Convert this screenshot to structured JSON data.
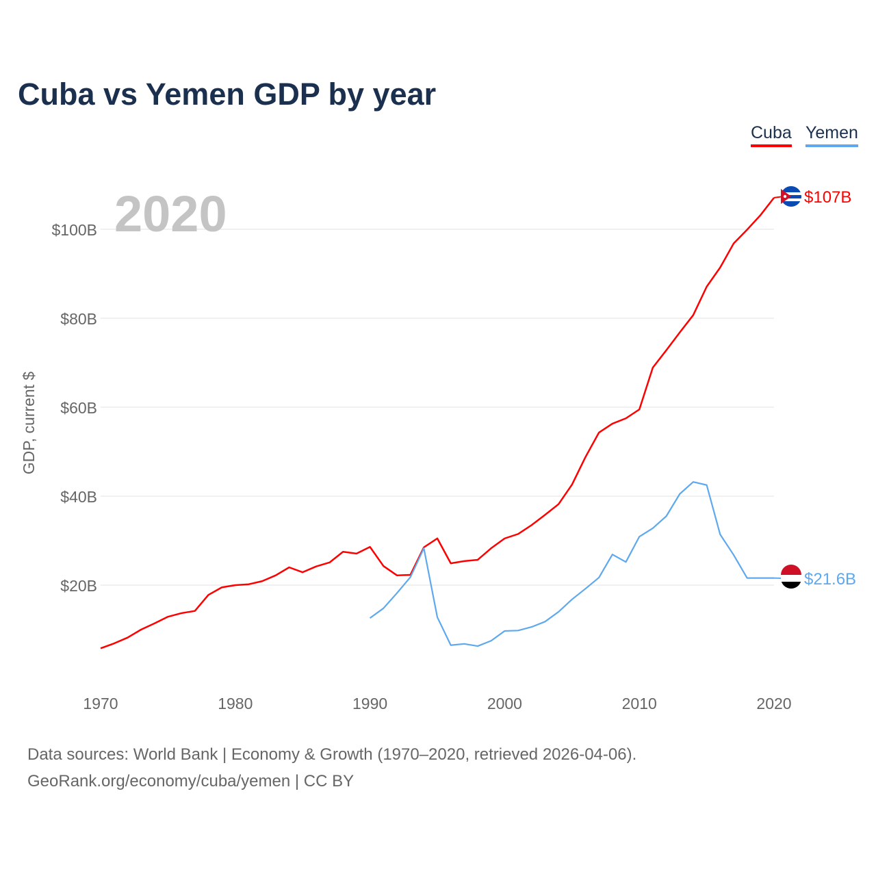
{
  "chart_data": {
    "type": "line",
    "title": "Cuba vs Yemen GDP by year",
    "ylabel": "GDP, current $",
    "xlabel": "",
    "year_watermark": "2020",
    "x_ticks": [
      "1970",
      "1980",
      "1990",
      "2000",
      "2010",
      "2020"
    ],
    "y_ticks": [
      "$20B",
      "$40B",
      "$60B",
      "$80B",
      "$100B"
    ],
    "y_tick_values": [
      20,
      40,
      60,
      80,
      100
    ],
    "xlim": [
      1970,
      2020
    ],
    "ylim": [
      0,
      110
    ],
    "grid": true,
    "legend_placement": "top-right",
    "series": [
      {
        "name": "Cuba",
        "color": "#ff0000",
        "end_label": "$107B",
        "start_year": 1970,
        "values": [
          5.8,
          6.9,
          8.2,
          10,
          11.4,
          12.9,
          13.7,
          14.2,
          17.8,
          19.5,
          20,
          20.2,
          20.9,
          22.2,
          24,
          22.9,
          24.2,
          25.1,
          27.5,
          27.1,
          28.6,
          24.3,
          22.2,
          22.3,
          28.5,
          30.5,
          24.9,
          25.4,
          25.7,
          28.3,
          30.5,
          31.5,
          33.5,
          35.8,
          38.2,
          42.6,
          48.8,
          54.3,
          56.3,
          57.5,
          59.5,
          68.9,
          72.8,
          76.8,
          80.7,
          87.1,
          91.4,
          96.8,
          99.9,
          103.2,
          107.1
        ]
      },
      {
        "name": "Yemen",
        "color": "#5ea8ee",
        "end_label": "$21.6B",
        "start_year": 1990,
        "values": [
          12.6,
          14.8,
          18.2,
          21.8,
          28.3,
          12.8,
          6.5,
          6.8,
          6.3,
          7.5,
          9.7,
          9.8,
          10.6,
          11.8,
          14,
          16.8,
          19.2,
          21.7,
          26.9,
          25.2,
          30.9,
          32.8,
          35.5,
          40.5,
          43.2,
          42.5,
          31.4,
          26.8,
          21.6,
          21.6,
          21.6
        ]
      }
    ]
  },
  "footer": {
    "line1": "Data sources: World Bank | Economy & Growth (1970–2020, retrieved 2026-04-06).",
    "line2": "GeoRank.org/economy/cuba/yemen | CC BY"
  }
}
